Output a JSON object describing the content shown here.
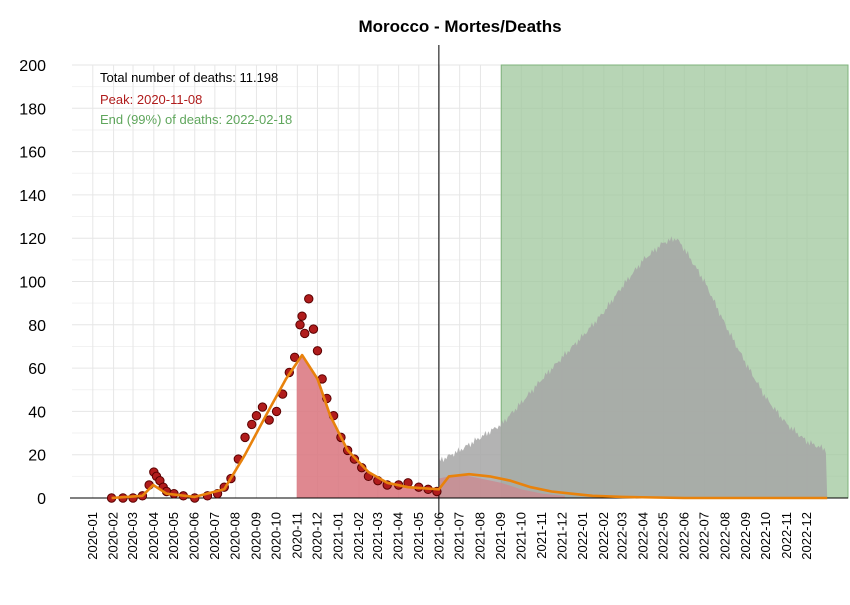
{
  "chart_data": {
    "type": "area",
    "title": "Morocco - Mortes/Deaths",
    "xlabel": "",
    "ylabel": "",
    "ylim": [
      0,
      200
    ],
    "yticks": [
      0,
      20,
      40,
      60,
      80,
      100,
      120,
      140,
      160,
      180,
      200
    ],
    "xlim": [
      "2019-12-01",
      "2023-01-31"
    ],
    "xtick_labels": [
      "2020-01",
      "2020-02",
      "2020-03",
      "2020-04",
      "2020-05",
      "2020-06",
      "2020-07",
      "2020-08",
      "2020-09",
      "2020-10",
      "2020-11",
      "2020-12",
      "2021-01",
      "2021-02",
      "2021-03",
      "2021-04",
      "2021-05",
      "2021-06",
      "2021-07",
      "2021-08",
      "2021-09",
      "2021-10",
      "2021-11",
      "2021-12",
      "2022-01",
      "2022-02",
      "2022-03",
      "2022-04",
      "2022-05",
      "2022-06",
      "2022-07",
      "2022-08",
      "2022-09",
      "2022-10",
      "2022-11",
      "2022-12"
    ],
    "grid": true,
    "annotations": {
      "total": "Total number of deaths: 11.198",
      "peak": "Peak: 2020-11-08",
      "end": "End (99%) of deaths: 2022-02-18"
    },
    "vertical_line_date": "2021-05-31",
    "shaded_region": {
      "start": "2021-09-01",
      "end": "2023-01-31",
      "y_top": 200
    },
    "observed_points": [
      {
        "date": "2020-01-29",
        "value": 0
      },
      {
        "date": "2020-02-15",
        "value": 0
      },
      {
        "date": "2020-03-01",
        "value": 0
      },
      {
        "date": "2020-03-15",
        "value": 1
      },
      {
        "date": "2020-03-25",
        "value": 6
      },
      {
        "date": "2020-04-01",
        "value": 12
      },
      {
        "date": "2020-04-05",
        "value": 10
      },
      {
        "date": "2020-04-10",
        "value": 8
      },
      {
        "date": "2020-04-15",
        "value": 5
      },
      {
        "date": "2020-04-20",
        "value": 3
      },
      {
        "date": "2020-05-01",
        "value": 2
      },
      {
        "date": "2020-05-15",
        "value": 1
      },
      {
        "date": "2020-06-01",
        "value": 0
      },
      {
        "date": "2020-06-20",
        "value": 1
      },
      {
        "date": "2020-07-05",
        "value": 2
      },
      {
        "date": "2020-07-15",
        "value": 5
      },
      {
        "date": "2020-07-25",
        "value": 9
      },
      {
        "date": "2020-08-05",
        "value": 18
      },
      {
        "date": "2020-08-15",
        "value": 28
      },
      {
        "date": "2020-08-25",
        "value": 34
      },
      {
        "date": "2020-09-01",
        "value": 38
      },
      {
        "date": "2020-09-10",
        "value": 42
      },
      {
        "date": "2020-09-20",
        "value": 36
      },
      {
        "date": "2020-10-01",
        "value": 40
      },
      {
        "date": "2020-10-10",
        "value": 48
      },
      {
        "date": "2020-10-20",
        "value": 58
      },
      {
        "date": "2020-10-28",
        "value": 65
      },
      {
        "date": "2020-11-05",
        "value": 80
      },
      {
        "date": "2020-11-08",
        "value": 84
      },
      {
        "date": "2020-11-12",
        "value": 76
      },
      {
        "date": "2020-11-18",
        "value": 92
      },
      {
        "date": "2020-11-25",
        "value": 78
      },
      {
        "date": "2020-12-01",
        "value": 68
      },
      {
        "date": "2020-12-08",
        "value": 55
      },
      {
        "date": "2020-12-15",
        "value": 46
      },
      {
        "date": "2020-12-25",
        "value": 38
      },
      {
        "date": "2021-01-05",
        "value": 28
      },
      {
        "date": "2021-01-15",
        "value": 22
      },
      {
        "date": "2021-01-25",
        "value": 18
      },
      {
        "date": "2021-02-05",
        "value": 14
      },
      {
        "date": "2021-02-15",
        "value": 10
      },
      {
        "date": "2021-03-01",
        "value": 8
      },
      {
        "date": "2021-03-15",
        "value": 6
      },
      {
        "date": "2021-04-01",
        "value": 6
      },
      {
        "date": "2021-04-15",
        "value": 7
      },
      {
        "date": "2021-05-01",
        "value": 5
      },
      {
        "date": "2021-05-15",
        "value": 4
      },
      {
        "date": "2021-05-28",
        "value": 3
      }
    ],
    "series": [
      {
        "values": [
          {
            "x": "2020-01-29",
            "y": 0
          },
          {
            "x": "2020-03-15",
            "y": 1
          },
          {
            "x": "2020-03-31",
            "y": 6
          },
          {
            "x": "2020-04-20",
            "y": 2
          },
          {
            "x": "2020-06-01",
            "y": 0.5
          },
          {
            "x": "2020-07-15",
            "y": 4
          },
          {
            "x": "2020-08-15",
            "y": 20
          },
          {
            "x": "2020-09-15",
            "y": 38
          },
          {
            "x": "2020-10-15",
            "y": 55
          },
          {
            "x": "2020-11-08",
            "y": 66
          },
          {
            "x": "2020-12-01",
            "y": 55
          },
          {
            "x": "2020-12-20",
            "y": 38
          },
          {
            "x": "2021-01-15",
            "y": 22
          },
          {
            "x": "2021-02-15",
            "y": 12
          },
          {
            "x": "2021-03-15",
            "y": 7
          },
          {
            "x": "2021-04-15",
            "y": 5
          },
          {
            "x": "2021-05-31",
            "y": 4
          },
          {
            "x": "2021-06-15",
            "y": 10
          },
          {
            "x": "2021-07-15",
            "y": 11
          },
          {
            "x": "2021-08-15",
            "y": 10
          },
          {
            "x": "2021-09-15",
            "y": 8
          },
          {
            "x": "2021-10-15",
            "y": 5
          },
          {
            "x": "2021-11-15",
            "y": 3
          },
          {
            "x": "2021-12-15",
            "y": 2
          },
          {
            "x": "2022-01-15",
            "y": 1
          },
          {
            "x": "2022-03-01",
            "y": 0.5
          },
          {
            "x": "2022-06-01",
            "y": 0
          },
          {
            "x": "2022-12-31",
            "y": 0
          }
        ]
      },
      {
        "values": [
          {
            "x": "2021-05-31",
            "y": 17
          },
          {
            "x": "2021-07-01",
            "y": 22
          },
          {
            "x": "2021-08-01",
            "y": 28
          },
          {
            "x": "2021-09-01",
            "y": 34
          },
          {
            "x": "2021-10-01",
            "y": 44
          },
          {
            "x": "2021-11-01",
            "y": 55
          },
          {
            "x": "2021-12-01",
            "y": 65
          },
          {
            "x": "2022-01-01",
            "y": 75
          },
          {
            "x": "2022-02-01",
            "y": 86
          },
          {
            "x": "2022-03-01",
            "y": 98
          },
          {
            "x": "2022-04-01",
            "y": 110
          },
          {
            "x": "2022-05-01",
            "y": 118
          },
          {
            "x": "2022-05-20",
            "y": 120
          },
          {
            "x": "2022-06-01",
            "y": 115
          },
          {
            "x": "2022-07-01",
            "y": 100
          },
          {
            "x": "2022-08-01",
            "y": 80
          },
          {
            "x": "2022-09-01",
            "y": 62
          },
          {
            "x": "2022-10-01",
            "y": 46
          },
          {
            "x": "2022-11-01",
            "y": 34
          },
          {
            "x": "2022-12-01",
            "y": 26
          },
          {
            "x": "2022-12-31",
            "y": 22
          }
        ]
      },
      {
        "values": [
          {
            "x": "2020-10-31",
            "y": 60
          },
          {
            "x": "2020-11-08",
            "y": 66
          },
          {
            "x": "2020-12-01",
            "y": 55
          },
          {
            "x": "2020-12-20",
            "y": 38
          },
          {
            "x": "2021-01-15",
            "y": 22
          },
          {
            "x": "2021-02-15",
            "y": 12
          },
          {
            "x": "2021-03-15",
            "y": 7
          },
          {
            "x": "2021-04-15",
            "y": 5
          },
          {
            "x": "2021-05-31",
            "y": 4
          }
        ]
      },
      {
        "values": [
          {
            "x": "2021-05-31",
            "y": 9
          },
          {
            "x": "2021-07-01",
            "y": 11
          },
          {
            "x": "2021-08-01",
            "y": 9
          },
          {
            "x": "2021-09-01",
            "y": 7
          },
          {
            "x": "2021-10-01",
            "y": 4
          },
          {
            "x": "2021-11-01",
            "y": 2
          },
          {
            "x": "2021-12-05",
            "y": 1
          }
        ]
      }
    ],
    "colors": {
      "points": "#b01c1c",
      "point_edge": "#5a0000",
      "fit_line": "#e8820c",
      "observed_area": "#d9737c",
      "projection_area": "#a6a6a6",
      "shaded_region": "#9fc79c",
      "post_area": "#c98c92",
      "annotation_total": "#000000",
      "annotation_peak": "#b01c1c",
      "annotation_end": "#5fa65c"
    }
  }
}
